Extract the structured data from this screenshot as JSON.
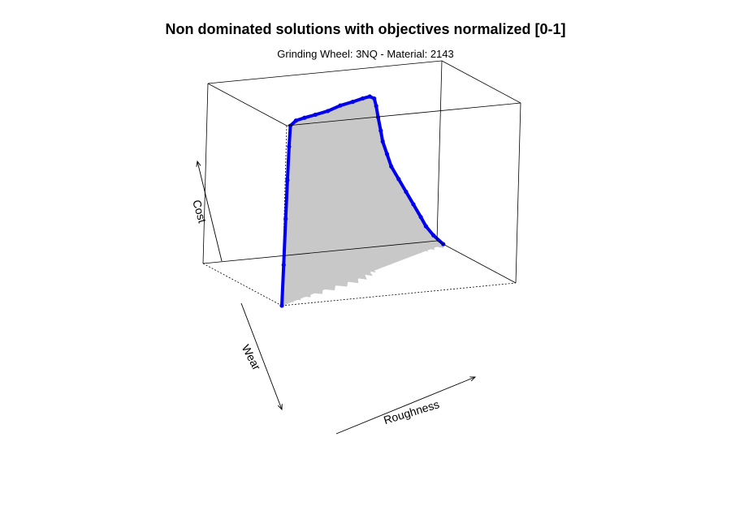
{
  "chart_data": {
    "type": "scatter",
    "projection": "3d",
    "title": "Non dominated solutions with objectives normalized [0-1]",
    "subtitle": "Grinding Wheel: 3NQ - Material: 2143",
    "xlabel": "Roughness",
    "ylabel": "Wear",
    "zlabel": "Cost",
    "xlim": [
      0,
      1
    ],
    "ylim": [
      0,
      1
    ],
    "zlim": [
      0,
      1
    ],
    "grid": false,
    "surface_color": "#c8c8c8",
    "series": [
      {
        "color": "#0000ee",
        "points": [
          [
            0.0,
            0.0,
            0.0
          ],
          [
            0.01,
            0.02,
            0.22
          ],
          [
            0.02,
            0.04,
            0.47
          ],
          [
            0.03,
            0.06,
            0.68
          ],
          [
            0.04,
            0.08,
            0.86
          ],
          [
            0.05,
            0.1,
            0.97
          ],
          [
            0.08,
            0.12,
            0.99
          ],
          [
            0.13,
            0.16,
            0.99
          ],
          [
            0.19,
            0.2,
            0.99
          ],
          [
            0.26,
            0.25,
            0.99
          ],
          [
            0.33,
            0.3,
            1.0
          ],
          [
            0.4,
            0.35,
            1.0
          ],
          [
            0.46,
            0.4,
            1.0
          ],
          [
            0.51,
            0.46,
            0.99
          ],
          [
            0.55,
            0.52,
            0.96
          ],
          [
            0.58,
            0.58,
            0.9
          ],
          [
            0.61,
            0.64,
            0.82
          ],
          [
            0.64,
            0.69,
            0.73
          ],
          [
            0.66,
            0.72,
            0.66
          ],
          [
            0.69,
            0.75,
            0.58
          ],
          [
            0.72,
            0.78,
            0.5
          ],
          [
            0.76,
            0.8,
            0.42
          ],
          [
            0.8,
            0.82,
            0.34
          ],
          [
            0.84,
            0.84,
            0.26
          ],
          [
            0.88,
            0.86,
            0.18
          ],
          [
            0.91,
            0.88,
            0.12
          ],
          [
            0.95,
            0.9,
            0.06
          ],
          [
            1.0,
            0.92,
            0.0
          ]
        ]
      }
    ]
  }
}
